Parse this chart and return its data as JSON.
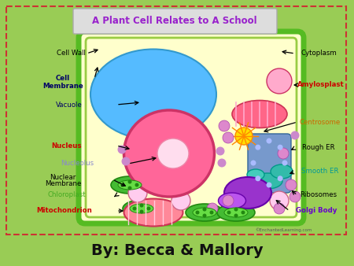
{
  "bg_color": "#99cc55",
  "title": "A Plant Cell Relates to A School",
  "subtitle": "By: Becca & Mallory",
  "border_color": "#cc3333",
  "cell_bg": "#ffffcc",
  "cell_wall_color": "#55bb22",
  "vacuole_color": "#55bbff",
  "nucleus_color": "#ff6699",
  "nucleolus_color": "#ffddee",
  "golgi_color": "#9933cc",
  "amyloplast_color": "#ff6699",
  "centrosome_color": "#ffaa00",
  "rough_er_color": "#6699cc",
  "smooth_er_color": "#33bbbb",
  "copyright": "©EnchantedLearning.com"
}
